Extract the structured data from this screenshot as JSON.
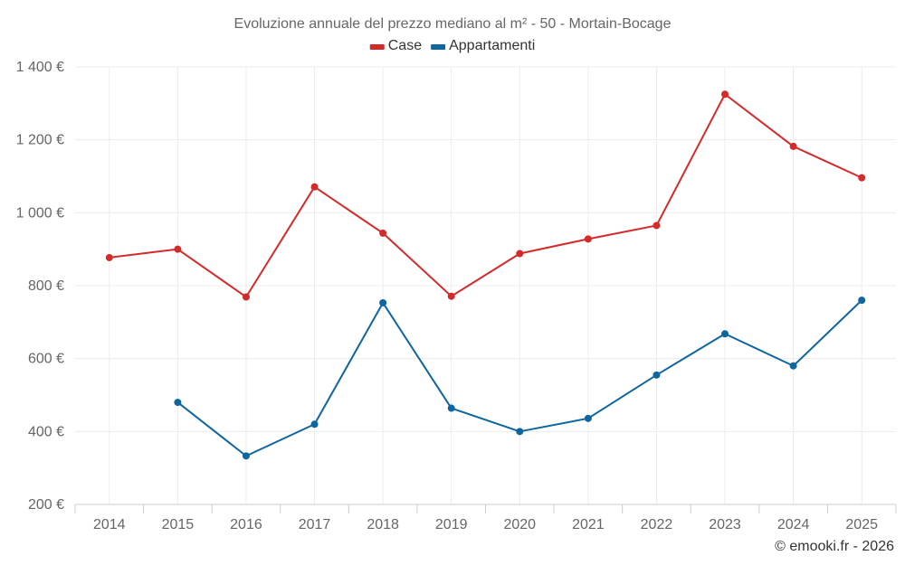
{
  "chart_data": {
    "type": "line",
    "title": "Evoluzione annuale del prezzo mediano al m² - 50 - Mortain-Bocage",
    "xlabel": "",
    "ylabel": "",
    "categories": [
      "2014",
      "2015",
      "2016",
      "2017",
      "2018",
      "2019",
      "2020",
      "2021",
      "2022",
      "2023",
      "2024",
      "2025"
    ],
    "ylim": [
      200,
      1400
    ],
    "yticks": [
      200,
      400,
      600,
      800,
      1000,
      1200,
      1400
    ],
    "ytick_labels": [
      "200 €",
      "400 €",
      "600 €",
      "800 €",
      "1 000 €",
      "1 200 €",
      "1 400 €"
    ],
    "grid": true,
    "legend_position": "top-center",
    "series": [
      {
        "name": "Case",
        "color": "#d42a2a",
        "values": [
          877,
          900,
          769,
          1071,
          944,
          771,
          888,
          928,
          965,
          1325,
          1182,
          1096
        ]
      },
      {
        "name": "Appartamenti",
        "color": "#0e66a0",
        "values": [
          null,
          480,
          333,
          420,
          753,
          464,
          400,
          436,
          555,
          668,
          580,
          760
        ]
      }
    ]
  },
  "credit": "© emooki.fr - 2026"
}
